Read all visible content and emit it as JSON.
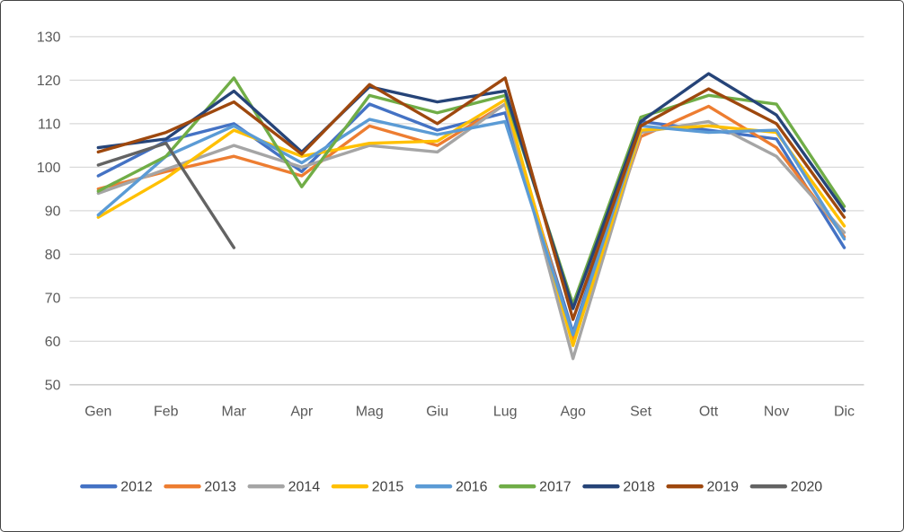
{
  "chart_data": {
    "type": "line",
    "title": "",
    "xlabel": "",
    "ylabel": "",
    "categories": [
      "Gen",
      "Feb",
      "Mar",
      "Apr",
      "Mag",
      "Giu",
      "Lug",
      "Ago",
      "Set",
      "Ott",
      "Nov",
      "Dic"
    ],
    "series": [
      {
        "name": "2012",
        "color": "#4472C4",
        "values": [
          98,
          106,
          110,
          99,
          114.5,
          108.5,
          112.5,
          62,
          110.5,
          108.5,
          106.5,
          81.5
        ]
      },
      {
        "name": "2013",
        "color": "#ED7D31",
        "values": [
          95,
          99,
          102.5,
          98,
          109.5,
          105,
          114.5,
          60.5,
          107,
          114,
          104.5,
          84
        ]
      },
      {
        "name": "2014",
        "color": "#A5A5A5",
        "values": [
          94,
          99.5,
          105,
          100,
          105,
          103.5,
          114.5,
          56,
          108,
          110.5,
          102.5,
          85
        ]
      },
      {
        "name": "2015",
        "color": "#FFC000",
        "values": [
          88.5,
          97.5,
          108.5,
          102.5,
          105.5,
          106,
          115.5,
          59,
          108.5,
          109.5,
          108,
          86.5
        ]
      },
      {
        "name": "2016",
        "color": "#5B9BD5",
        "values": [
          89,
          102.5,
          109.5,
          101,
          111,
          107.5,
          110.5,
          61.5,
          109.5,
          108,
          108.5,
          83.5
        ]
      },
      {
        "name": "2017",
        "color": "#70AD47",
        "values": [
          94.5,
          102.5,
          120.5,
          95.5,
          116.5,
          112.5,
          116.5,
          68.5,
          111.5,
          116.5,
          114.5,
          91
        ]
      },
      {
        "name": "2018",
        "color": "#264478",
        "values": [
          104.5,
          106.5,
          117.5,
          103.5,
          118.5,
          115,
          117.5,
          67.5,
          110.5,
          121.5,
          112,
          90
        ]
      },
      {
        "name": "2019",
        "color": "#9E480E",
        "values": [
          103.5,
          108,
          115,
          103,
          119,
          110,
          120.5,
          65,
          109.5,
          118,
          110,
          88.5
        ]
      },
      {
        "name": "2020",
        "color": "#636363",
        "values": [
          100.5,
          105.5,
          81.5,
          null,
          null,
          null,
          null,
          null,
          null,
          null,
          null,
          null
        ]
      }
    ],
    "ylim": [
      50,
      130
    ],
    "ytick_step": 10,
    "yticks": [
      "50",
      "60",
      "70",
      "80",
      "90",
      "100",
      "110",
      "120",
      "130"
    ],
    "grid": true,
    "legend_position": "bottom",
    "legend_labels": [
      "2012",
      "2013",
      "2014",
      "2015",
      "2016",
      "2017",
      "2018",
      "2019",
      "2020"
    ]
  },
  "colors": {
    "background": "#FFFFFF",
    "gridline": "#D9D9D9",
    "axis_line": "#BFBFBF",
    "axis_text": "#595959",
    "legend_text": "#404040",
    "frame_border": "#444444"
  }
}
